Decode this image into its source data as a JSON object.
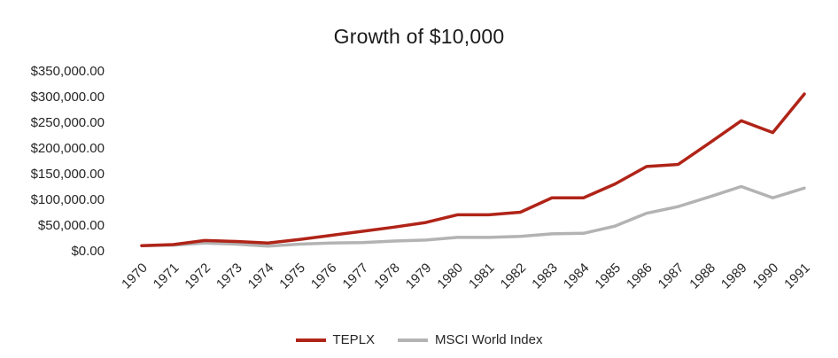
{
  "chart": {
    "title": "Growth of $10,000"
  },
  "chart_data": {
    "type": "line",
    "title": "Growth of $10,000",
    "x": [
      1970,
      1971,
      1972,
      1973,
      1974,
      1975,
      1976,
      1977,
      1978,
      1979,
      1980,
      1981,
      1982,
      1983,
      1984,
      1985,
      1986,
      1987,
      1988,
      1989,
      1990,
      1991
    ],
    "series": [
      {
        "name": "TEPLX",
        "color": "#b02418",
        "values": [
          10000,
          12000,
          20000,
          18000,
          15000,
          22000,
          30000,
          38000,
          46000,
          55000,
          70000,
          70000,
          75000,
          103000,
          103000,
          130000,
          164000,
          168000,
          210000,
          253000,
          230000,
          305000
        ]
      },
      {
        "name": "MSCI World Index",
        "color": "#b3b3b3",
        "values": [
          10000,
          11000,
          15000,
          13000,
          9000,
          13000,
          15000,
          16000,
          19000,
          21000,
          26000,
          26000,
          28000,
          33000,
          34000,
          48000,
          73000,
          86000,
          105000,
          125000,
          103000,
          122000
        ]
      }
    ],
    "ylim": [
      0,
      350000
    ],
    "ytick_step": 50000,
    "ytick_prefix": "$",
    "grid": false,
    "legend_position": "bottom",
    "xlabel": "",
    "ylabel": ""
  }
}
